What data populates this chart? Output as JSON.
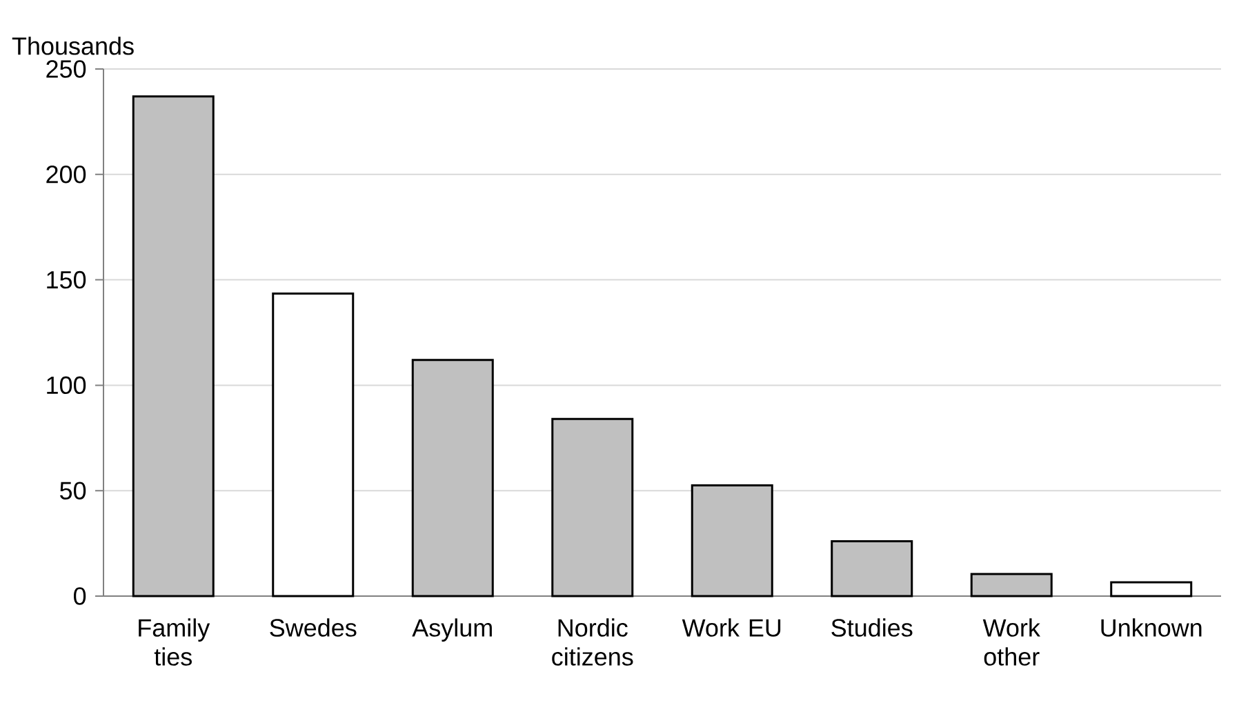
{
  "chart_data": {
    "type": "bar",
    "ylabel": "Thousands",
    "categories": [
      "Family ties",
      "Swedes",
      "Asylum",
      "Nordic citizens",
      "Work EU",
      "Studies",
      "Work other",
      "Unknown"
    ],
    "values": [
      237,
      143.5,
      112,
      84,
      52.5,
      26,
      10.5,
      6.5
    ],
    "colors": [
      "#c0c0c0",
      "#ffffff",
      "#c0c0c0",
      "#c0c0c0",
      "#c0c0c0",
      "#c0c0c0",
      "#c0c0c0",
      "#ffffff"
    ],
    "ylim": [
      0,
      250
    ],
    "yticks": [
      0,
      50,
      100,
      150,
      200,
      250
    ],
    "grid": "y"
  }
}
